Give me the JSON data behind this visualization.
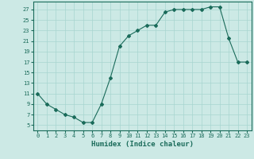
{
  "x": [
    0,
    1,
    2,
    3,
    4,
    5,
    6,
    7,
    8,
    9,
    10,
    11,
    12,
    13,
    14,
    15,
    16,
    17,
    18,
    19,
    20,
    21,
    22,
    23
  ],
  "y": [
    11,
    9,
    8,
    7,
    6.5,
    5.5,
    5.5,
    9,
    14,
    20,
    22,
    23,
    24,
    24,
    26.5,
    27,
    27,
    27,
    27,
    27.5,
    27.5,
    21.5,
    17,
    17
  ],
  "xlabel": "Humidex (Indice chaleur)",
  "xlim": [
    -0.5,
    23.5
  ],
  "ylim": [
    4,
    28.5
  ],
  "yticks": [
    5,
    7,
    9,
    11,
    13,
    15,
    17,
    19,
    21,
    23,
    25,
    27
  ],
  "xticks": [
    0,
    1,
    2,
    3,
    4,
    5,
    6,
    7,
    8,
    9,
    10,
    11,
    12,
    13,
    14,
    15,
    16,
    17,
    18,
    19,
    20,
    21,
    22,
    23
  ],
  "xtick_labels": [
    "0",
    "1",
    "2",
    "3",
    "4",
    "5",
    "6",
    "7",
    "8",
    "9",
    "10",
    "11",
    "12",
    "13",
    "14",
    "15",
    "16",
    "17",
    "18",
    "19",
    "20",
    "21",
    "22",
    "23"
  ],
  "line_color": "#1a6b5a",
  "marker": "D",
  "marker_size": 2,
  "bg_color": "#cce9e5",
  "grid_color": "#a8d5d0",
  "font_color": "#1a6b5a",
  "font_size_tick": 5,
  "font_size_label": 6.5
}
